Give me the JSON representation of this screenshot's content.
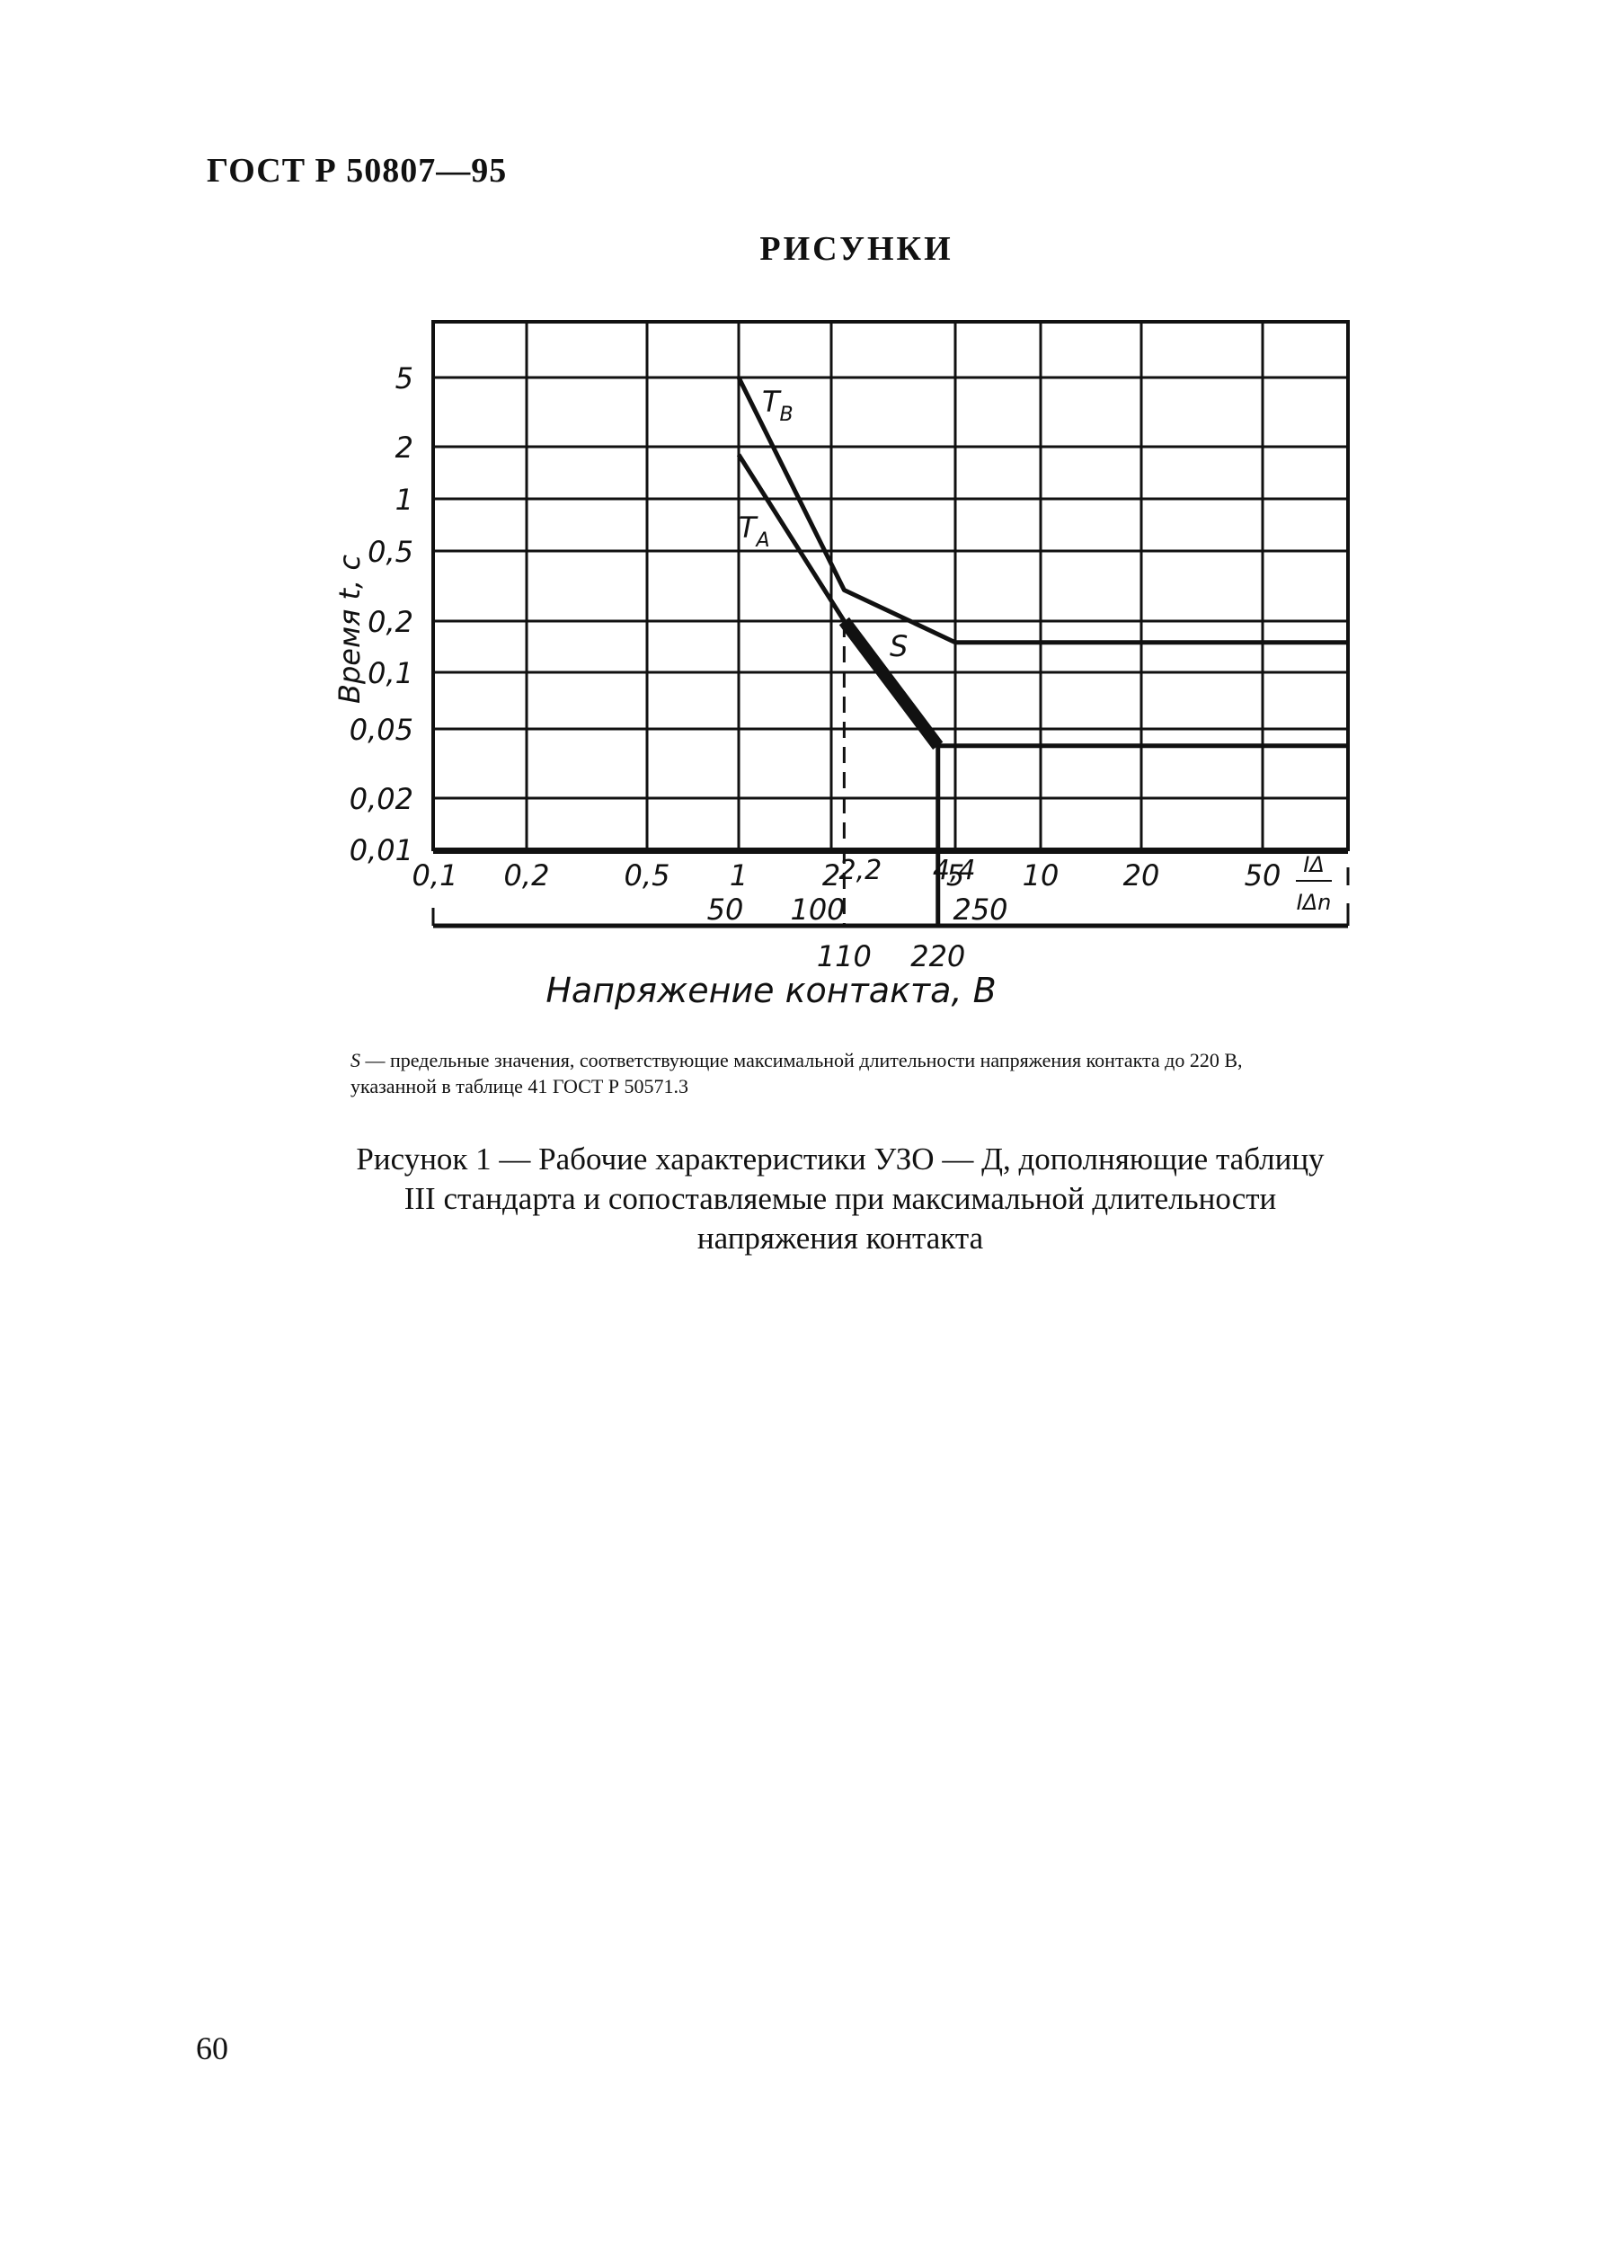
{
  "document": {
    "header": "ГОСТ Р 50807—95",
    "section_title": "РИСУНКИ",
    "note": {
      "symbol": "S",
      "text": " — предельные значения, соответствующие максимальной длительности напряжения контакта до 220 В, указанной в таблице 41 ГОСТ Р 50571.3"
    },
    "caption": "Рисунок 1 — Рабочие характеристики УЗО — Д, дополняющие таблицу III стандарта и сопоставляемые при максимальной длительности напряжения контакта",
    "page_number": "60"
  },
  "chart_data": {
    "type": "line",
    "ylabel": "Время t, с",
    "xlabel": "Напряжение контакта, В",
    "x_ratio_label": {
      "numerator": "IΔ",
      "denominator": "IΔn"
    },
    "x_scale": "log",
    "y_scale": "nonuniform",
    "xlim": [
      0.1,
      100
    ],
    "y_ticks": [
      "5",
      "2",
      "1",
      "0,5",
      "0,2",
      "0,1",
      "0,05",
      "0,02",
      "0,01"
    ],
    "x_ticks": [
      {
        "value": 0.1,
        "label": "0,1"
      },
      {
        "value": 0.2,
        "label": "0,2"
      },
      {
        "value": 0.5,
        "label": "0,5"
      },
      {
        "value": 1,
        "label": "1"
      },
      {
        "value": 2,
        "label": "2"
      },
      {
        "value": 5,
        "label": "5"
      },
      {
        "value": 10,
        "label": "10"
      },
      {
        "value": 20,
        "label": "20"
      },
      {
        "value": 50,
        "label": "50"
      }
    ],
    "x_extra_labels": [
      {
        "value": 2.2,
        "label": "2,2"
      },
      {
        "value": 4.4,
        "label": "4,4"
      }
    ],
    "voltage_ticks_row1": [
      {
        "value": 1,
        "label": "50"
      },
      {
        "value": 2,
        "label": "100"
      },
      {
        "value": 5,
        "label": "250"
      }
    ],
    "voltage_ticks_row2": [
      {
        "value": 2.2,
        "label": "110"
      },
      {
        "value": 4.4,
        "label": "220"
      }
    ],
    "grid": true,
    "series": [
      {
        "name": "TB",
        "points": [
          [
            1,
            5
          ],
          [
            2.2,
            0.3
          ],
          [
            5,
            0.15
          ],
          [
            100,
            0.15
          ]
        ]
      },
      {
        "name": "TA",
        "points": [
          [
            1,
            1.8
          ],
          [
            2.2,
            0.2
          ],
          [
            4.4,
            0.04
          ],
          [
            100,
            0.04
          ]
        ]
      },
      {
        "name": "S",
        "points": [
          [
            2.2,
            0.2
          ],
          [
            4.4,
            0.04
          ]
        ]
      }
    ],
    "reference_lines": [
      {
        "x": 2.2,
        "style": "dashed",
        "from_y": 0.2
      },
      {
        "x": 4.4,
        "style": "solid",
        "from_y": 0.04
      }
    ]
  }
}
